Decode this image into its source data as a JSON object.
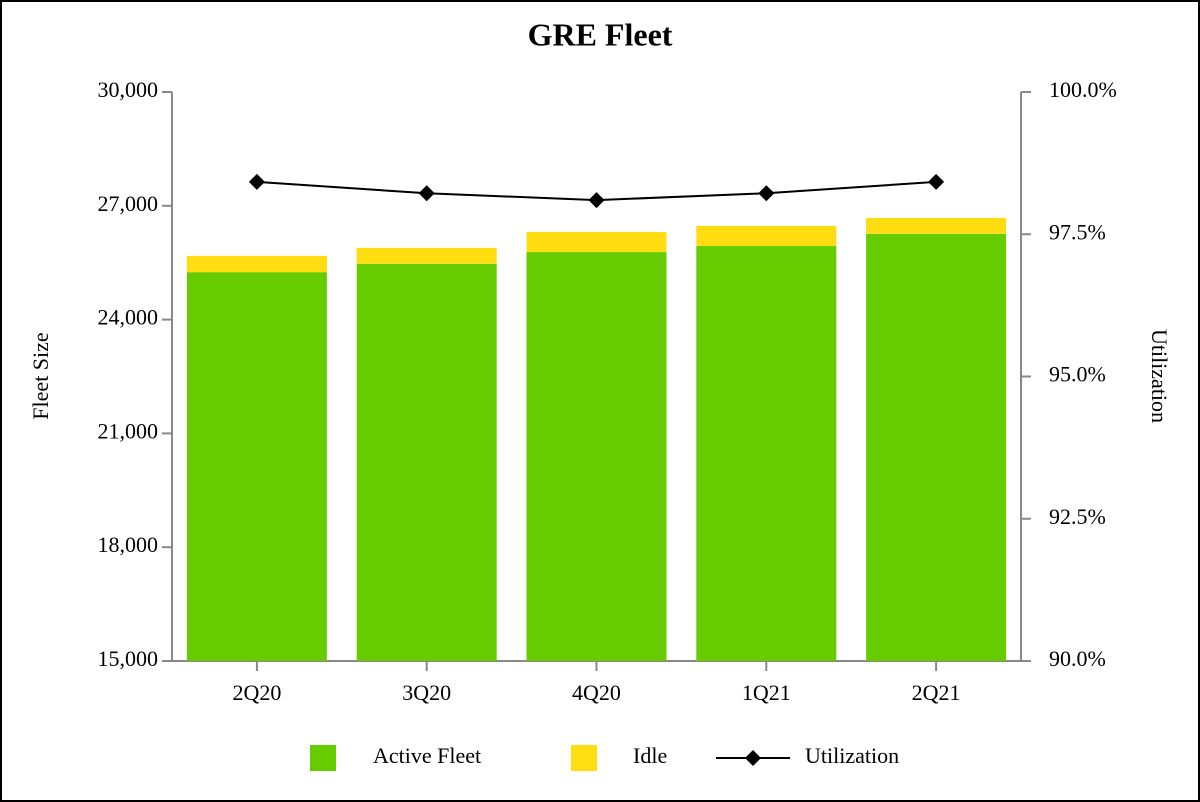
{
  "chart_data": {
    "type": "bar-line",
    "title": "GRE Fleet",
    "y_label": "Fleet Size",
    "y2_label": "Utilization",
    "categories": [
      "2Q20",
      "3Q20",
      "4Q20",
      "1Q21",
      "2Q21"
    ],
    "series": [
      {
        "name": "Active Fleet",
        "type": "bar",
        "color": "#66cc00",
        "values": [
          25250,
          25470,
          25780,
          25940,
          26260
        ]
      },
      {
        "name": "Idle",
        "type": "bar",
        "color": "#ffdd11",
        "values": [
          430,
          420,
          530,
          530,
          420
        ]
      },
      {
        "name": "Utilization",
        "type": "line",
        "axis": "y2",
        "color": "#000000",
        "values": [
          98.42,
          98.22,
          98.1,
          98.22,
          98.42
        ]
      }
    ],
    "ylim": [
      15000,
      30000
    ],
    "yticks": [
      {
        "value": 15000,
        "label": "15,000"
      },
      {
        "value": 18000,
        "label": "18,000"
      },
      {
        "value": 21000,
        "label": "21,000"
      },
      {
        "value": 24000,
        "label": "24,000"
      },
      {
        "value": 27000,
        "label": "27,000"
      },
      {
        "value": 30000,
        "label": "30,000"
      }
    ],
    "y2lim": [
      90,
      100
    ],
    "y2ticks": [
      {
        "value": 90,
        "label": "90.0%"
      },
      {
        "value": 92.5,
        "label": "92.5%"
      },
      {
        "value": 95,
        "label": "95.0%"
      },
      {
        "value": 97.5,
        "label": "97.5%"
      },
      {
        "value": 100,
        "label": "100.0%"
      }
    ],
    "legend": "bottom"
  }
}
